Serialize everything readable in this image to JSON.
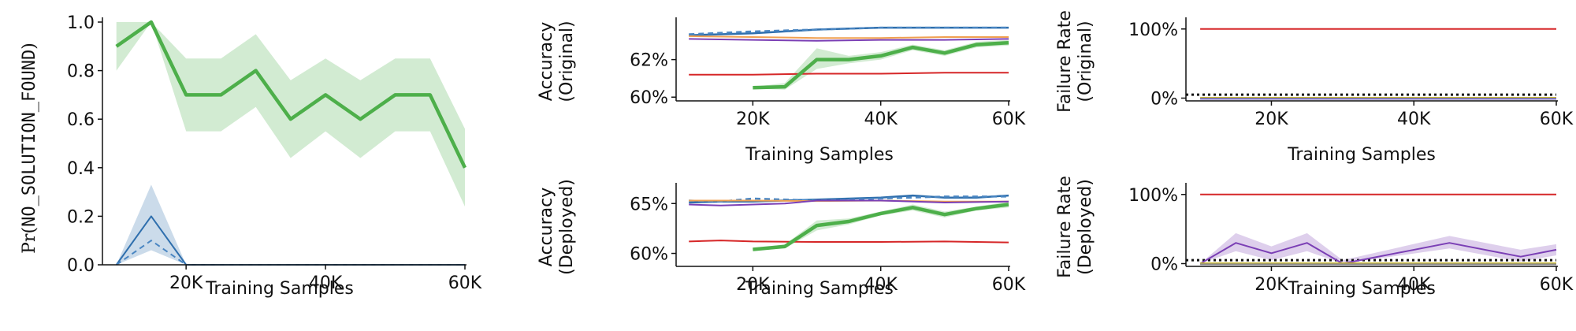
{
  "chart_data": [
    {
      "type": "line",
      "panel": "nsf",
      "ylabel_prefix": "Pr(",
      "ylabel_code": "NO_SOLUTION_FOUND",
      "ylabel_suffix": ")",
      "xlabel": "Training Samples",
      "xlim": [
        8000,
        60000
      ],
      "ylim": [
        0,
        1
      ],
      "xticks": [
        20000,
        40000,
        60000
      ],
      "xtick_labels": [
        "20K",
        "40K",
        "60K"
      ],
      "yticks": [
        0,
        0.2,
        0.4,
        0.6,
        0.8,
        1.0
      ],
      "ytick_labels": [
        "0.0",
        "0.2",
        "0.4",
        "0.6",
        "0.8",
        "1.0"
      ],
      "series": [
        {
          "color": "#4daf4a",
          "width": 4.5,
          "dash": "",
          "x": [
            10000,
            15000,
            20000,
            25000,
            30000,
            35000,
            40000,
            45000,
            50000,
            55000,
            60000
          ],
          "values": [
            0.9,
            1.0,
            0.7,
            0.7,
            0.8,
            0.6,
            0.7,
            0.6,
            0.7,
            0.7,
            0.4
          ],
          "band_low": [
            0.8,
            1.0,
            0.55,
            0.55,
            0.65,
            0.44,
            0.55,
            0.44,
            0.55,
            0.55,
            0.24
          ],
          "band_high": [
            1.0,
            1.0,
            0.85,
            0.85,
            0.95,
            0.76,
            0.85,
            0.76,
            0.85,
            0.85,
            0.56
          ]
        },
        {
          "color": "#2f6fad",
          "width": 2,
          "dash": "",
          "x": [
            10000,
            15000,
            20000,
            60000
          ],
          "values": [
            0.0,
            0.2,
            0.0,
            0.0
          ],
          "band_low": [
            0.0,
            0.06,
            0.0,
            0.0
          ],
          "band_high": [
            0.0,
            0.33,
            0.0,
            0.0
          ]
        },
        {
          "color": "#4a86c2",
          "width": 2,
          "dash": "7,5",
          "x": [
            10000,
            15000,
            20000,
            60000
          ],
          "values": [
            0.0,
            0.1,
            0.0,
            0.0
          ]
        }
      ]
    },
    {
      "type": "line",
      "panel": "acc-orig",
      "ylabel_lines": [
        "Accuracy",
        "(Original)"
      ],
      "xlabel": "Training Samples",
      "xlim": [
        8000,
        60000
      ],
      "ylim": [
        59.8,
        64.0
      ],
      "xticks": [
        20000,
        40000,
        60000
      ],
      "xtick_labels": [
        "20K",
        "40K",
        "60K"
      ],
      "yticks": [
        60,
        62
      ],
      "ytick_labels": [
        "60%",
        "62%"
      ],
      "series": [
        {
          "color": "#2f6fad",
          "width": 2.5,
          "dash": "",
          "x": [
            10000,
            20000,
            30000,
            40000,
            50000,
            60000
          ],
          "values": [
            63.3,
            63.4,
            63.6,
            63.7,
            63.7,
            63.7
          ]
        },
        {
          "color": "#4a86c2",
          "width": 2.5,
          "dash": "7,5",
          "x": [
            10000,
            20000,
            30000,
            40000,
            50000,
            60000
          ],
          "values": [
            63.35,
            63.5,
            63.6,
            63.7,
            63.7,
            63.7
          ]
        },
        {
          "color": "#f0a050",
          "width": 2,
          "dash": "",
          "x": [
            10000,
            20000,
            30000,
            40000,
            50000,
            60000
          ],
          "values": [
            63.25,
            63.2,
            63.15,
            63.15,
            63.2,
            63.2
          ]
        },
        {
          "color": "#7b3fb5",
          "width": 2,
          "dash": "",
          "x": [
            10000,
            20000,
            30000,
            40000,
            50000,
            60000
          ],
          "values": [
            63.1,
            63.05,
            63.0,
            63.05,
            63.05,
            63.1
          ]
        },
        {
          "color": "#d62728",
          "width": 2,
          "dash": "",
          "x": [
            10000,
            20000,
            30000,
            40000,
            50000,
            60000
          ],
          "values": [
            61.2,
            61.2,
            61.25,
            61.25,
            61.3,
            61.3
          ]
        },
        {
          "color": "#4daf4a",
          "width": 4.5,
          "dash": "",
          "x": [
            20000,
            25000,
            30000,
            35000,
            40000,
            45000,
            50000,
            55000,
            60000
          ],
          "values": [
            60.5,
            60.55,
            62.0,
            62.0,
            62.2,
            62.65,
            62.35,
            62.8,
            62.9
          ],
          "band_low": [
            60.45,
            60.4,
            61.5,
            61.8,
            62.0,
            62.5,
            62.2,
            62.65,
            62.75
          ],
          "band_high": [
            60.55,
            60.75,
            62.6,
            62.2,
            62.4,
            62.8,
            62.5,
            62.95,
            63.05
          ]
        }
      ]
    },
    {
      "type": "line",
      "panel": "acc-dep",
      "ylabel_lines": [
        "Accuracy",
        "(Deployed)"
      ],
      "xlabel": "Training Samples",
      "xlim": [
        8000,
        60000
      ],
      "ylim": [
        58.7,
        66.6
      ],
      "xticks": [
        20000,
        40000,
        60000
      ],
      "xtick_labels": [
        "20K",
        "40K",
        "60K"
      ],
      "yticks": [
        60,
        65
      ],
      "ytick_labels": [
        "60%",
        "65%"
      ],
      "series": [
        {
          "color": "#2f6fad",
          "width": 2.5,
          "dash": "",
          "x": [
            10000,
            15000,
            20000,
            30000,
            40000,
            45000,
            50000,
            55000,
            60000
          ],
          "values": [
            65.1,
            65.2,
            65.2,
            65.4,
            65.6,
            65.8,
            65.6,
            65.6,
            65.8
          ]
        },
        {
          "color": "#4a86c2",
          "width": 2.5,
          "dash": "7,5",
          "x": [
            10000,
            15000,
            20000,
            30000,
            40000,
            50000,
            60000
          ],
          "values": [
            65.3,
            65.2,
            65.5,
            65.3,
            65.5,
            65.7,
            65.7
          ]
        },
        {
          "color": "#f0a050",
          "width": 2,
          "dash": "",
          "x": [
            10000,
            20000,
            30000,
            40000,
            50000,
            60000
          ],
          "values": [
            65.3,
            65.3,
            65.25,
            65.3,
            65.2,
            65.2
          ]
        },
        {
          "color": "#7b3fb5",
          "width": 2,
          "dash": "",
          "x": [
            10000,
            15000,
            20000,
            25000,
            30000,
            40000,
            50000,
            60000
          ],
          "values": [
            64.9,
            64.8,
            64.9,
            65.0,
            65.3,
            65.3,
            65.1,
            65.2
          ]
        },
        {
          "color": "#d62728",
          "width": 2,
          "dash": "",
          "x": [
            10000,
            15000,
            20000,
            30000,
            40000,
            50000,
            60000
          ],
          "values": [
            61.2,
            61.3,
            61.2,
            61.15,
            61.15,
            61.2,
            61.1
          ]
        },
        {
          "color": "#4daf4a",
          "width": 4.5,
          "dash": "",
          "x": [
            20000,
            25000,
            30000,
            35000,
            40000,
            45000,
            50000,
            55000,
            60000
          ],
          "values": [
            60.4,
            60.7,
            62.8,
            63.2,
            64.0,
            64.6,
            63.9,
            64.5,
            64.9
          ],
          "band_low": [
            60.3,
            60.5,
            62.3,
            62.9,
            63.8,
            64.3,
            63.6,
            64.3,
            64.6
          ],
          "band_high": [
            60.5,
            60.9,
            63.3,
            63.5,
            64.2,
            64.9,
            64.2,
            64.7,
            65.2
          ]
        }
      ]
    },
    {
      "type": "line",
      "panel": "fail-orig",
      "ylabel_lines": [
        "Failure Rate",
        "(Original)"
      ],
      "xlabel": "Training Samples",
      "xlim": [
        8000,
        60000
      ],
      "ylim": [
        -4,
        110
      ],
      "xticks": [
        20000,
        40000,
        60000
      ],
      "xtick_labels": [
        "20K",
        "40K",
        "60K"
      ],
      "yticks": [
        0,
        100
      ],
      "ytick_labels": [
        "0%",
        "100%"
      ],
      "reference_line": {
        "value": 5,
        "color": "#111111",
        "dash": "3,4"
      },
      "series": [
        {
          "color": "#d62728",
          "width": 2,
          "dash": "",
          "x": [
            10000,
            60000
          ],
          "values": [
            100,
            100
          ]
        },
        {
          "color": "#c9b830",
          "width": 3,
          "dash": "",
          "x": [
            10000,
            60000
          ],
          "values": [
            0,
            0
          ]
        },
        {
          "color": "#8a8a8a",
          "width": 2,
          "dash": "",
          "x": [
            10000,
            60000
          ],
          "values": [
            -0.6,
            -0.6
          ]
        },
        {
          "color": "#7b6fc0",
          "width": 2,
          "dash": "",
          "x": [
            10000,
            60000
          ],
          "values": [
            -1.2,
            -1.2
          ]
        }
      ]
    },
    {
      "type": "line",
      "panel": "fail-dep",
      "ylabel_lines": [
        "Failure Rate",
        "(Deployed)"
      ],
      "xlabel": "Training Samples",
      "xlim": [
        8000,
        60000
      ],
      "ylim": [
        -4,
        110
      ],
      "xticks": [
        20000,
        40000,
        60000
      ],
      "xtick_labels": [
        "20K",
        "40K",
        "60K"
      ],
      "yticks": [
        0,
        100
      ],
      "ytick_labels": [
        "0%",
        "100%"
      ],
      "reference_line": {
        "value": 5,
        "color": "#111111",
        "dash": "3,4"
      },
      "series": [
        {
          "color": "#d62728",
          "width": 2,
          "dash": "",
          "x": [
            10000,
            60000
          ],
          "values": [
            100,
            100
          ]
        },
        {
          "color": "#7b3fb5",
          "width": 2,
          "dash": "",
          "x": [
            10000,
            15000,
            20000,
            25000,
            30000,
            45000,
            55000,
            60000
          ],
          "values": [
            0,
            30,
            15,
            30,
            0,
            30,
            10,
            20
          ],
          "band_low": [
            0,
            18,
            5,
            18,
            0,
            22,
            3,
            12
          ],
          "band_high": [
            0,
            44,
            25,
            44,
            5,
            40,
            20,
            28
          ]
        },
        {
          "color": "#c9b830",
          "width": 3,
          "dash": "",
          "x": [
            10000,
            60000
          ],
          "values": [
            0,
            0
          ]
        },
        {
          "color": "#8a8a8a",
          "width": 2,
          "dash": "",
          "x": [
            10000,
            60000
          ],
          "values": [
            -1,
            -1
          ]
        }
      ]
    }
  ]
}
